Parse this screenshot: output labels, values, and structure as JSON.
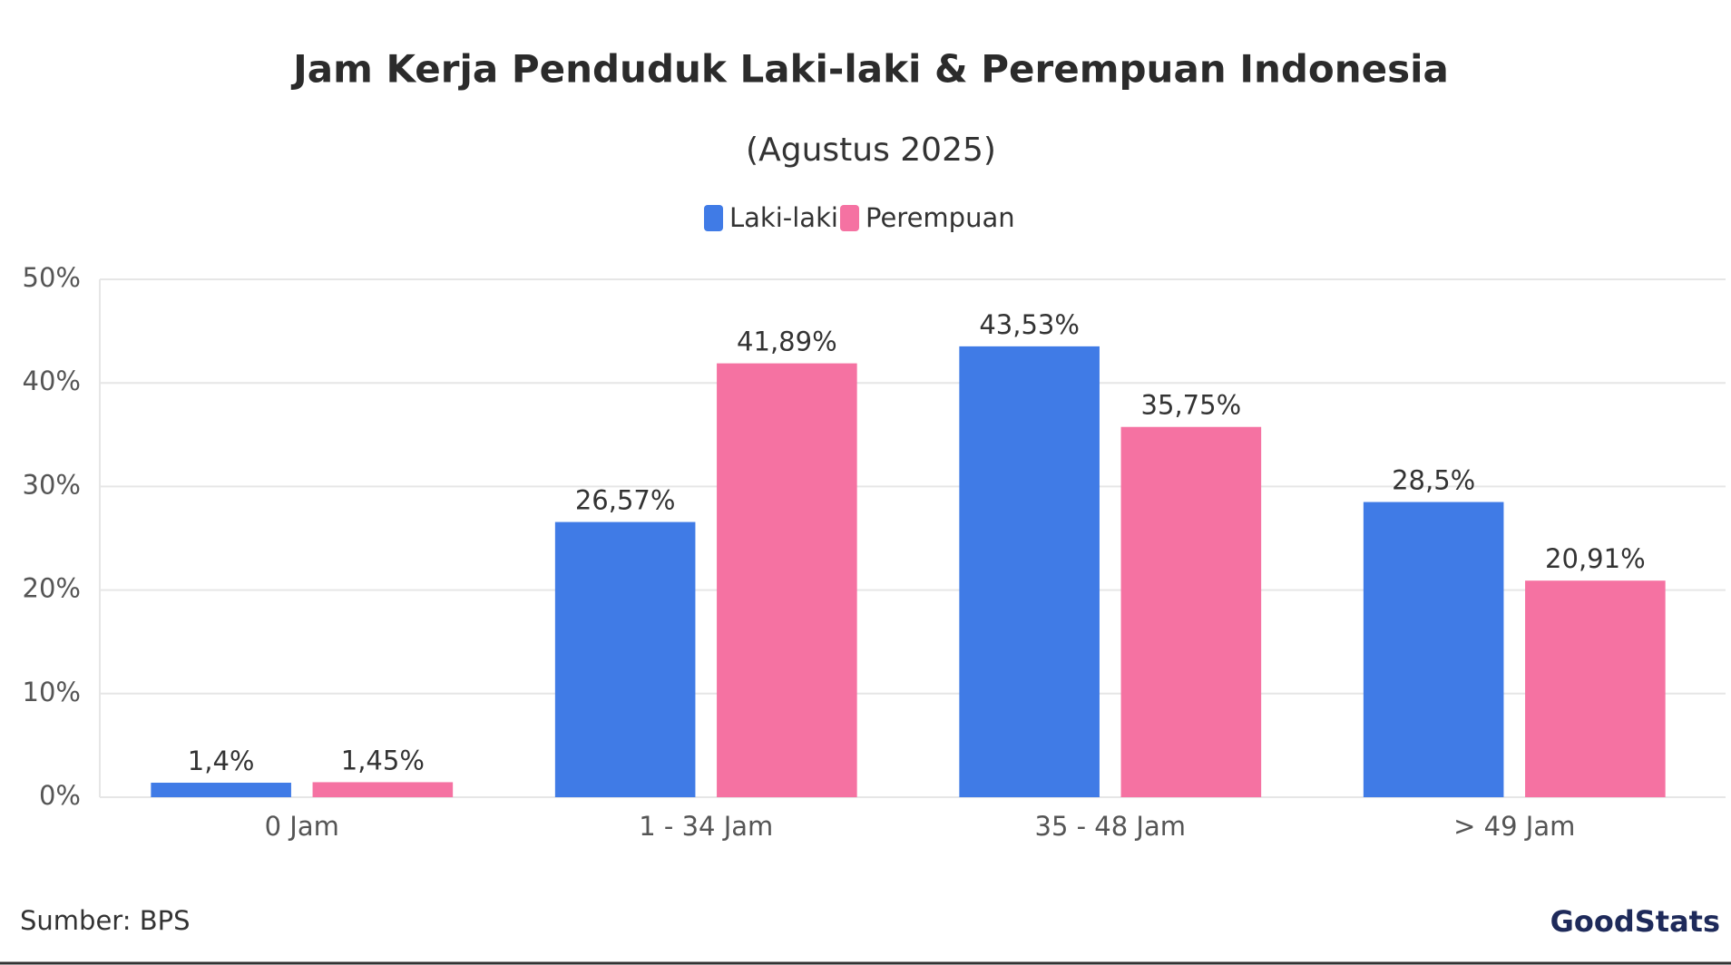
{
  "chart_data": {
    "type": "bar",
    "title": "Jam Kerja Penduduk Laki-laki & Perempuan Indonesia",
    "subtitle": "(Agustus 2025)",
    "categories": [
      "0 Jam",
      "1 - 34 Jam",
      "35 - 48 Jam",
      "> 49 Jam"
    ],
    "series": [
      {
        "name": "Laki-laki",
        "color": "#407be6",
        "values": [
          1.4,
          26.57,
          43.53,
          28.5
        ],
        "value_labels": [
          "1,4%",
          "26,57%",
          "43,53%",
          "28,5%"
        ]
      },
      {
        "name": "Perempuan",
        "color": "#f572a2",
        "values": [
          1.45,
          41.89,
          35.75,
          20.91
        ],
        "value_labels": [
          "1,45%",
          "41,89%",
          "35,75%",
          "20,91%"
        ]
      }
    ],
    "ylim": [
      0,
      50
    ],
    "yticks": [
      {
        "value": 0,
        "label": "0%"
      },
      {
        "value": 10,
        "label": "10%"
      },
      {
        "value": 20,
        "label": "20%"
      },
      {
        "value": 30,
        "label": "30%"
      },
      {
        "value": 40,
        "label": "40%"
      },
      {
        "value": 50,
        "label": "50%"
      }
    ],
    "grid": true,
    "legend": "top",
    "source": "Sumber: BPS",
    "logo": "GoodStats"
  }
}
